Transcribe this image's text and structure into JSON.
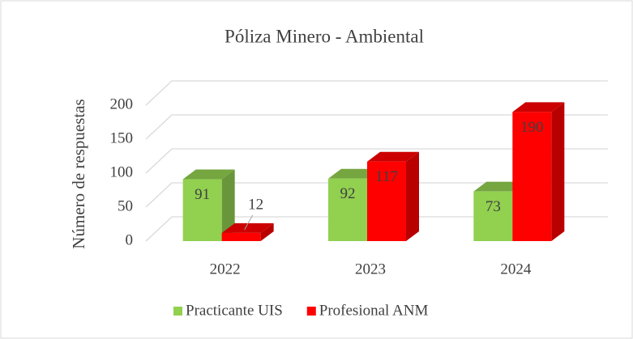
{
  "chart_data": {
    "type": "bar3d",
    "title": "Póliza Minero - Ambiental",
    "y_label": "Número de respuestas",
    "categories": [
      "2022",
      "2023",
      "2024"
    ],
    "series": [
      {
        "name": "Practicante UIS",
        "color": "#92d050",
        "values": [
          91,
          92,
          73
        ]
      },
      {
        "name": "Profesional ANM",
        "color": "#ff0000",
        "values": [
          12,
          117,
          190
        ]
      }
    ],
    "ylim": [
      0,
      200
    ],
    "yticks": [
      0,
      50,
      100,
      150,
      200
    ],
    "grid": true,
    "legend": "bottom"
  }
}
